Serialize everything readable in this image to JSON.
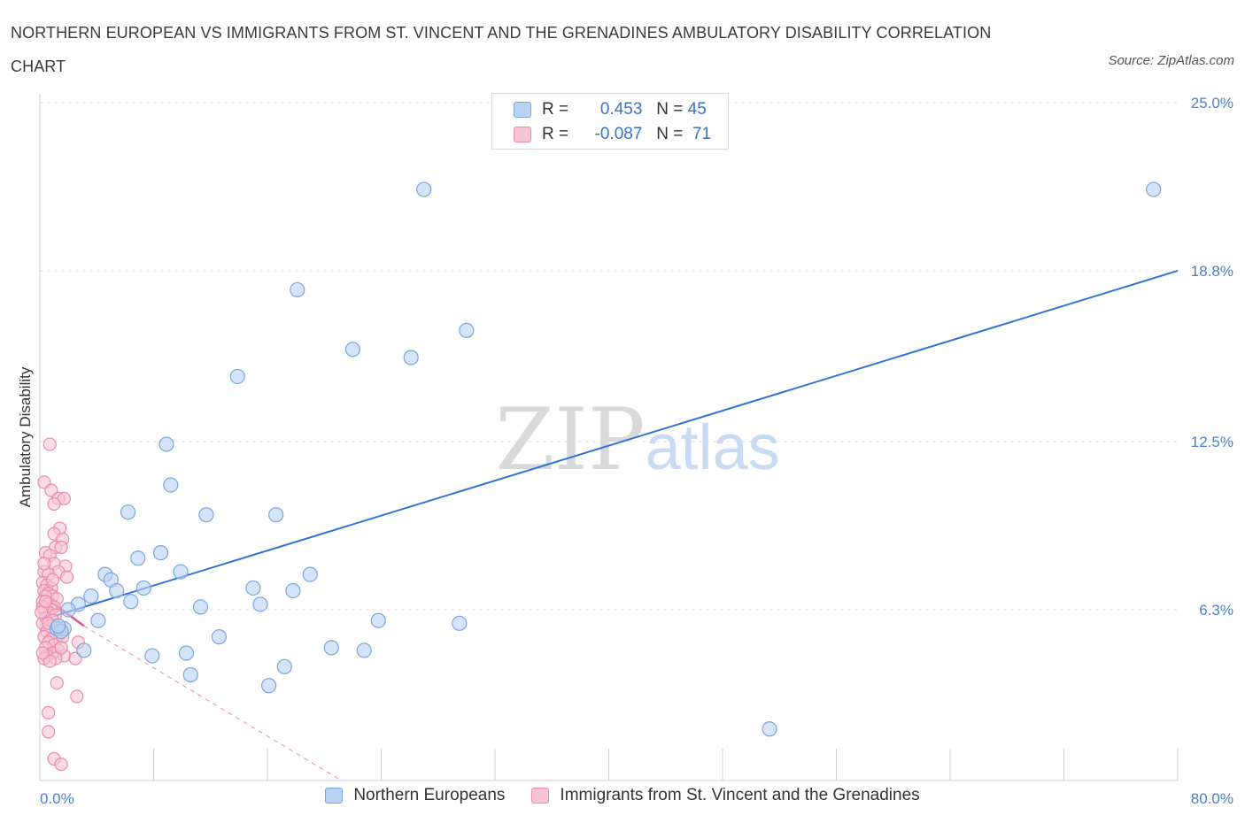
{
  "header": {
    "title": "NORTHERN EUROPEAN VS IMMIGRANTS FROM ST. VINCENT AND THE GRENADINES AMBULATORY DISABILITY CORRELATION CHART",
    "source": "Source: ZipAtlas.com"
  },
  "legend": {
    "r_label": "R =",
    "n_label": "N =",
    "series1_r": "0.453",
    "series1_n": "45",
    "series2_r": "-0.087",
    "series2_n": "71"
  },
  "colors": {
    "blue_fill": "#b9d2f3",
    "blue_stroke": "#7aa5dc",
    "blue_line": "#2f74d0",
    "pink_fill": "#f7c4d3",
    "pink_stroke": "#ec8aaa",
    "pink_line": "#e25586",
    "axis_text": "#4a7fd0",
    "grid": "#e2e2e2"
  },
  "chart_data": {
    "type": "scatter",
    "title": "NORTHERN EUROPEAN VS IMMIGRANTS FROM ST. VINCENT AND THE GRENADINES AMBULATORY DISABILITY CORRELATION CHART",
    "xlabel": "",
    "ylabel": "Ambulatory Disability",
    "xlim": [
      0,
      80
    ],
    "ylim": [
      0,
      25
    ],
    "x_tick_labels": [
      "0.0%",
      "80.0%"
    ],
    "y_ticks": [
      6.3,
      12.5,
      18.8,
      25.0
    ],
    "y_tick_labels": [
      "6.3%",
      "12.5%",
      "18.8%",
      "25.0%"
    ],
    "grid": true,
    "watermark": "ZIPatlas",
    "series": [
      {
        "name": "Northern Europeans",
        "color": "#7aa5dc",
        "R": 0.453,
        "N": 45,
        "trend": {
          "x": [
            0,
            80
          ],
          "y": [
            5.9,
            18.8
          ],
          "style": "solid"
        },
        "points": [
          [
            27.0,
            21.8
          ],
          [
            78.3,
            21.8
          ],
          [
            18.1,
            18.1
          ],
          [
            30.0,
            16.6
          ],
          [
            22.0,
            15.9
          ],
          [
            26.1,
            15.6
          ],
          [
            13.9,
            14.9
          ],
          [
            8.9,
            12.4
          ],
          [
            9.2,
            10.9
          ],
          [
            6.2,
            9.9
          ],
          [
            11.7,
            9.8
          ],
          [
            16.6,
            9.8
          ],
          [
            8.5,
            8.4
          ],
          [
            6.9,
            8.2
          ],
          [
            9.9,
            7.7
          ],
          [
            4.6,
            7.6
          ],
          [
            5.0,
            7.4
          ],
          [
            19.0,
            7.6
          ],
          [
            7.3,
            7.1
          ],
          [
            15.0,
            7.1
          ],
          [
            17.8,
            7.0
          ],
          [
            5.4,
            7.0
          ],
          [
            3.6,
            6.8
          ],
          [
            6.4,
            6.6
          ],
          [
            2.7,
            6.5
          ],
          [
            11.3,
            6.4
          ],
          [
            15.5,
            6.5
          ],
          [
            2.0,
            6.3
          ],
          [
            4.1,
            5.9
          ],
          [
            23.8,
            5.9
          ],
          [
            29.5,
            5.8
          ],
          [
            1.7,
            5.6
          ],
          [
            1.2,
            5.6
          ],
          [
            1.5,
            5.5
          ],
          [
            12.6,
            5.3
          ],
          [
            20.5,
            4.9
          ],
          [
            22.8,
            4.8
          ],
          [
            3.1,
            4.8
          ],
          [
            10.3,
            4.7
          ],
          [
            7.9,
            4.6
          ],
          [
            17.2,
            4.2
          ],
          [
            10.6,
            3.9
          ],
          [
            16.1,
            3.5
          ],
          [
            1.3,
            5.7
          ],
          [
            51.3,
            1.9
          ]
        ]
      },
      {
        "name": "Immigrants from St. Vincent and the Grenadines",
        "color": "#ec8aaa",
        "R": -0.087,
        "N": 71,
        "trend": {
          "x": [
            0,
            3.1
          ],
          "y": [
            6.9,
            5.7
          ],
          "style": "solid",
          "extended_dashed": {
            "x": [
              3.1,
              21.2
            ],
            "y": [
              5.7,
              0.0
            ]
          }
        },
        "points": [
          [
            0.7,
            12.4
          ],
          [
            0.3,
            11.0
          ],
          [
            0.8,
            10.7
          ],
          [
            1.3,
            10.4
          ],
          [
            1.7,
            10.4
          ],
          [
            1.0,
            10.2
          ],
          [
            1.4,
            9.3
          ],
          [
            1.0,
            9.1
          ],
          [
            1.6,
            8.9
          ],
          [
            1.1,
            8.6
          ],
          [
            1.5,
            8.6
          ],
          [
            0.4,
            8.4
          ],
          [
            0.7,
            8.3
          ],
          [
            1.0,
            8.0
          ],
          [
            1.8,
            7.9
          ],
          [
            1.3,
            7.7
          ],
          [
            0.3,
            7.7
          ],
          [
            0.6,
            7.6
          ],
          [
            0.2,
            7.3
          ],
          [
            0.5,
            7.2
          ],
          [
            0.8,
            7.1
          ],
          [
            0.3,
            7.0
          ],
          [
            0.6,
            6.9
          ],
          [
            0.9,
            6.8
          ],
          [
            0.4,
            6.8
          ],
          [
            1.2,
            6.7
          ],
          [
            0.2,
            6.6
          ],
          [
            0.7,
            6.5
          ],
          [
            0.5,
            6.5
          ],
          [
            1.0,
            6.4
          ],
          [
            0.3,
            6.3
          ],
          [
            0.8,
            6.3
          ],
          [
            0.6,
            6.2
          ],
          [
            1.1,
            6.1
          ],
          [
            0.4,
            6.0
          ],
          [
            0.9,
            5.9
          ],
          [
            0.2,
            5.8
          ],
          [
            0.7,
            5.7
          ],
          [
            1.2,
            5.6
          ],
          [
            0.5,
            5.5
          ],
          [
            1.4,
            5.4
          ],
          [
            0.3,
            5.3
          ],
          [
            0.8,
            5.2
          ],
          [
            1.6,
            5.3
          ],
          [
            0.6,
            5.1
          ],
          [
            1.0,
            5.0
          ],
          [
            2.7,
            5.1
          ],
          [
            0.4,
            4.9
          ],
          [
            1.3,
            4.8
          ],
          [
            0.9,
            4.7
          ],
          [
            0.5,
            4.6
          ],
          [
            1.7,
            4.6
          ],
          [
            0.3,
            4.5
          ],
          [
            1.1,
            4.5
          ],
          [
            2.5,
            4.5
          ],
          [
            0.7,
            4.4
          ],
          [
            0.2,
            4.7
          ],
          [
            1.5,
            4.9
          ],
          [
            0.6,
            5.8
          ],
          [
            0.2,
            6.4
          ],
          [
            0.4,
            6.6
          ],
          [
            1.2,
            3.6
          ],
          [
            2.6,
            3.1
          ],
          [
            0.6,
            2.5
          ],
          [
            0.6,
            1.8
          ],
          [
            1.0,
            0.8
          ],
          [
            1.5,
            0.6
          ],
          [
            0.9,
            7.4
          ],
          [
            0.3,
            8.0
          ],
          [
            1.9,
            7.5
          ],
          [
            0.1,
            6.2
          ]
        ]
      }
    ]
  }
}
